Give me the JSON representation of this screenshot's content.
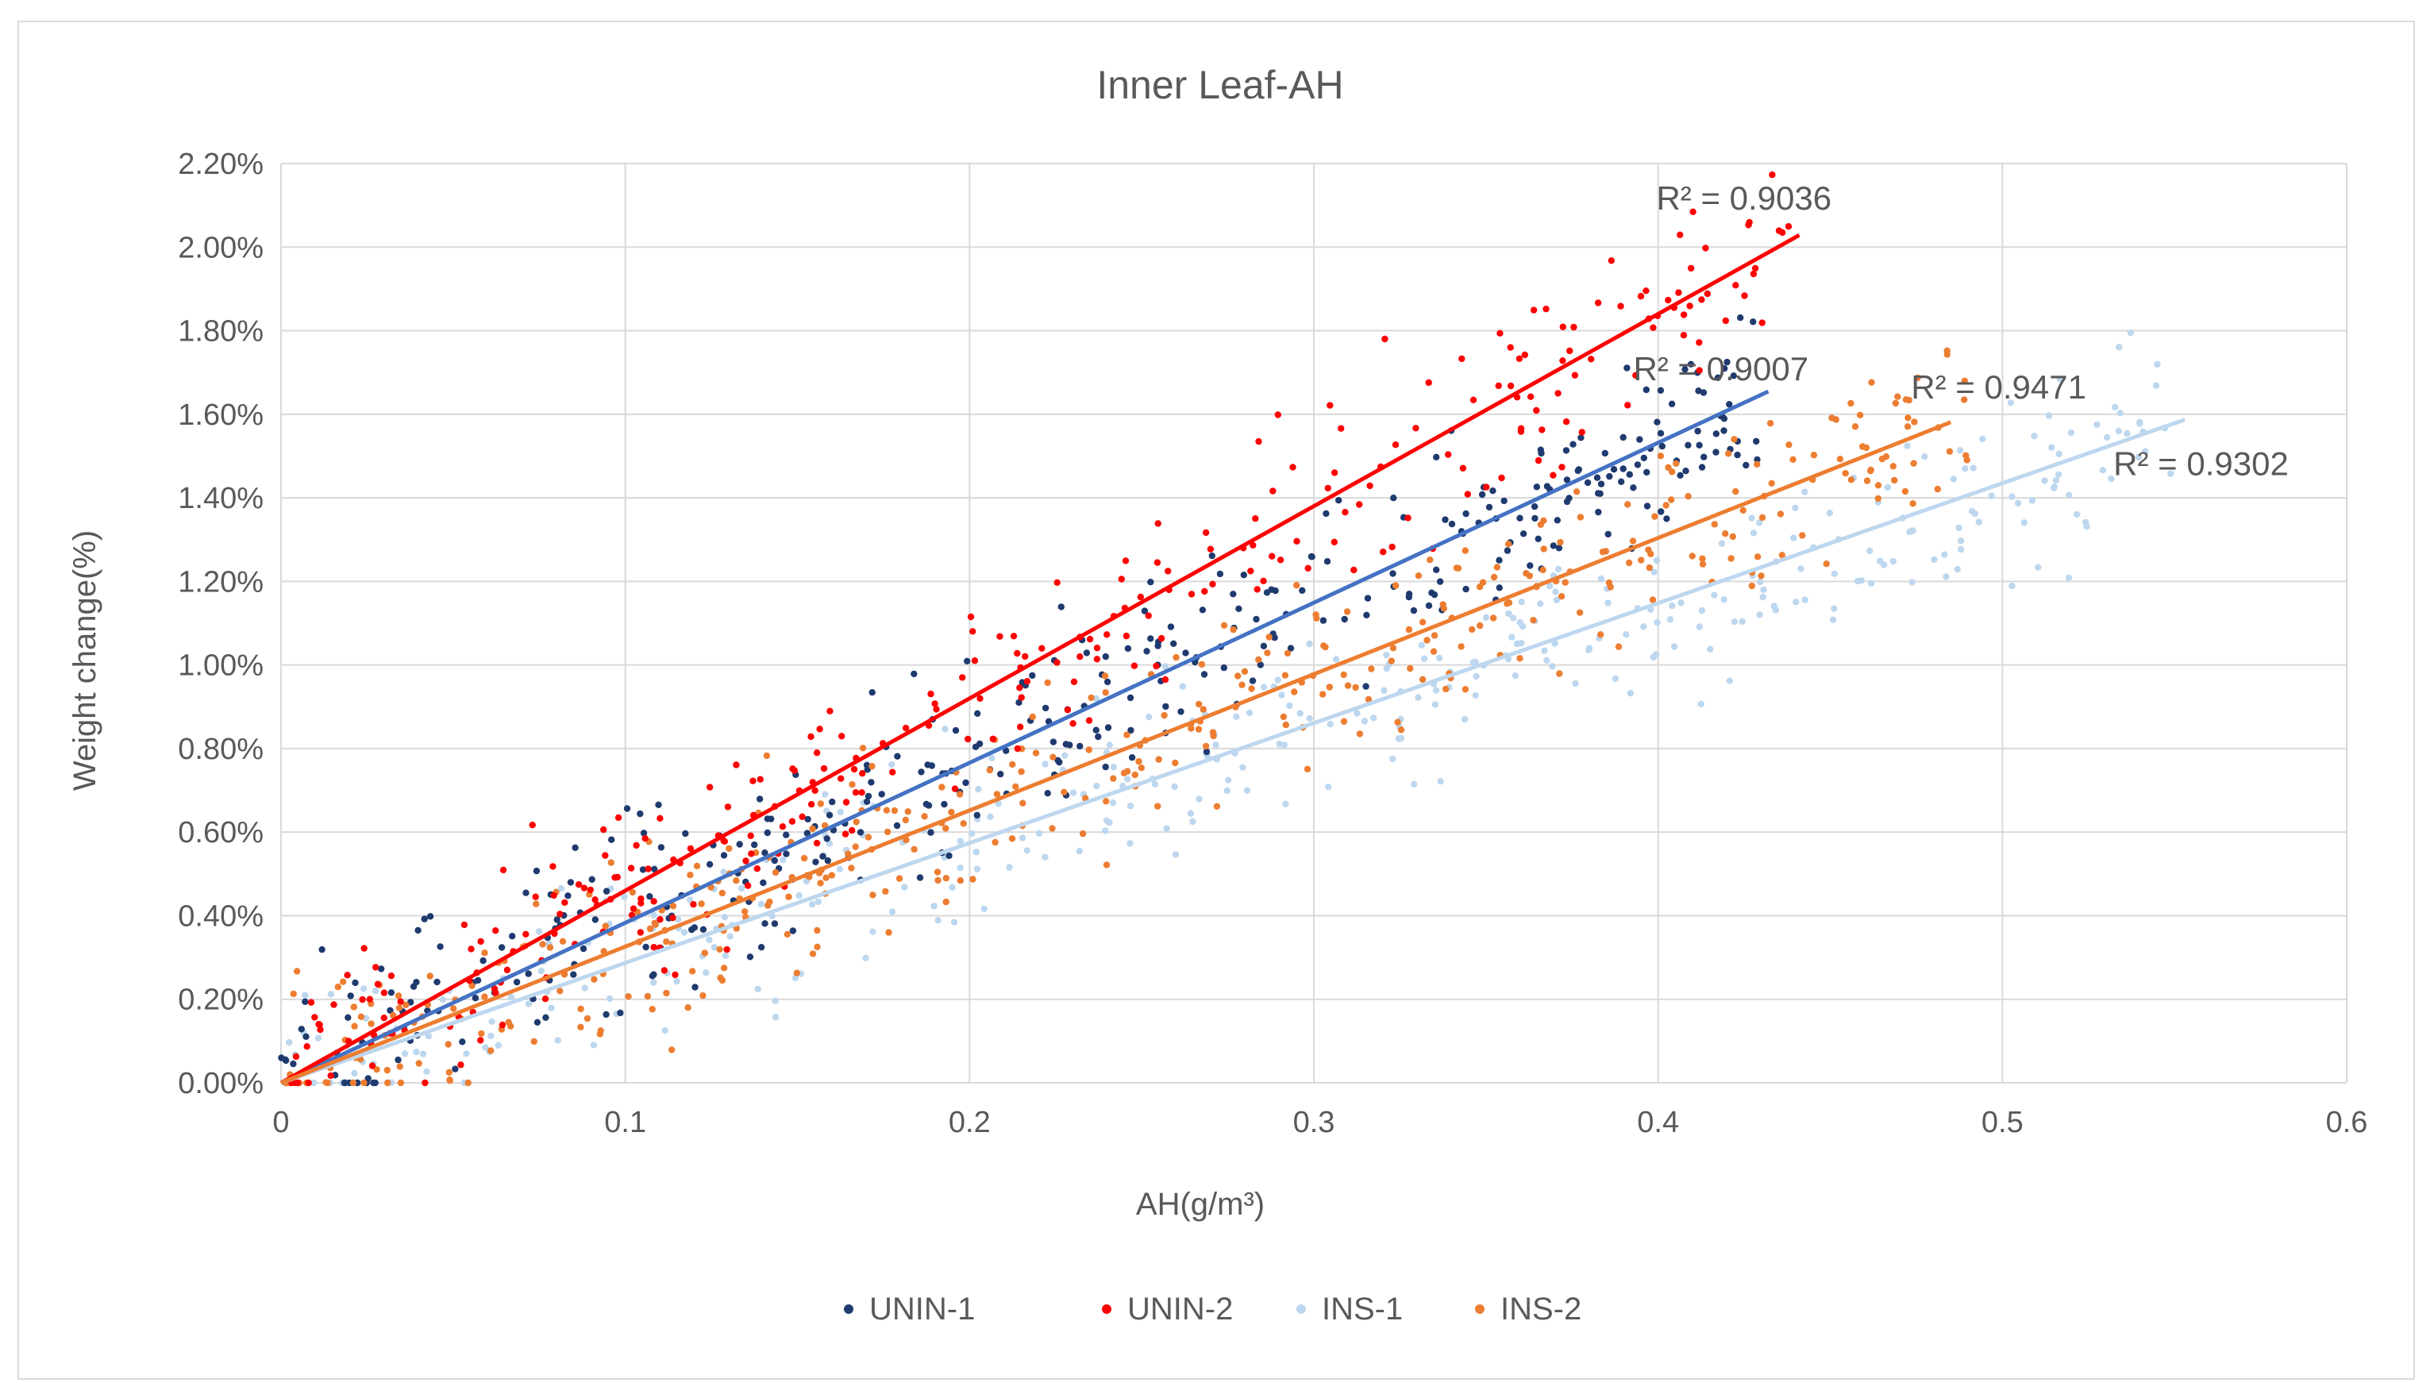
{
  "chart_data": {
    "type": "scatter",
    "title": "Inner Leaf-AH",
    "xlabel": "AH(g/m³)",
    "ylabel": "Weight change(%)",
    "xlim": [
      0,
      0.6
    ],
    "ylim": [
      0,
      2.2
    ],
    "x_ticks": [
      0,
      0.1,
      0.2,
      0.3,
      0.4,
      0.5,
      0.6
    ],
    "x_tick_labels": [
      "0",
      "0.1",
      "0.2",
      "0.3",
      "0.4",
      "0.5",
      "0.6"
    ],
    "y_ticks": [
      0,
      0.2,
      0.4,
      0.6,
      0.8,
      1.0,
      1.2,
      1.4,
      1.6,
      1.8,
      2.0,
      2.2
    ],
    "y_tick_labels": [
      "0.00%",
      "0.20%",
      "0.40%",
      "0.60%",
      "0.80%",
      "1.00%",
      "1.20%",
      "1.40%",
      "1.60%",
      "1.80%",
      "2.00%",
      "2.20%"
    ],
    "grid": true,
    "legend_position": "bottom",
    "series": [
      {
        "name": "UNIN-1",
        "color": "#1f3a6e",
        "point_count": 380,
        "x_range": [
          0.0,
          0.43
        ],
        "trendline": {
          "slope": 3.83,
          "intercept": 0.0,
          "x_end": 0.432,
          "color": "#4472c4",
          "r2_label": "R² = 0.9007"
        }
      },
      {
        "name": "UNIN-2",
        "color": "#ff0000",
        "point_count": 300,
        "x_range": [
          0.0,
          0.44
        ],
        "trendline": {
          "slope": 4.6,
          "intercept": 0.0,
          "x_end": 0.441,
          "color": "#ff0000",
          "r2_label": "R² = 0.9036"
        }
      },
      {
        "name": "INS-1",
        "color": "#bdd7ee",
        "point_count": 380,
        "x_range": [
          0.0,
          0.55
        ],
        "trendline": {
          "slope": 2.87,
          "intercept": 0.0,
          "x_end": 0.553,
          "color": "#bdd7ee",
          "r2_label": "R² = 0.9302"
        }
      },
      {
        "name": "INS-2",
        "color": "#ed7d31",
        "point_count": 420,
        "x_range": [
          0.0,
          0.49
        ],
        "trendline": {
          "slope": 3.26,
          "intercept": 0.0,
          "x_end": 0.485,
          "color": "#ed7d31",
          "r2_label": "R² = 0.9471"
        }
      }
    ]
  }
}
